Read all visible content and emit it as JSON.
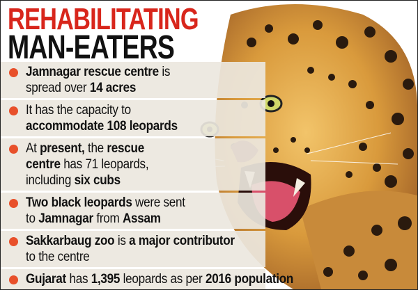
{
  "header": {
    "title": [
      "REHABILITATING",
      "MAN-EATERS"
    ]
  },
  "bullets": [
    {
      "lines": [
        [
          {
            "text": "Jamnagar rescue centre",
            "bold": true
          },
          {
            "text": "is",
            "bold": false
          }
        ],
        [
          {
            "text": "spread over",
            "bold": false
          },
          {
            "text": "14 acres",
            "bold": true
          }
        ]
      ]
    },
    {
      "lines": [
        [
          {
            "text": "It has the capacity to",
            "bold": false
          }
        ],
        [
          {
            "text": "accommodate 108 leopards",
            "bold": true
          }
        ]
      ]
    },
    {
      "lines": [
        [
          {
            "text": "At",
            "bold": false
          },
          {
            "text": "present,",
            "bold": true
          },
          {
            "text": "the",
            "bold": false
          },
          {
            "text": "rescue",
            "bold": true
          }
        ],
        [
          {
            "text": "centre",
            "bold": true
          },
          {
            "text": "has 71 leopards,",
            "bold": false
          }
        ],
        [
          {
            "text": "including",
            "bold": false
          },
          {
            "text": "six cubs",
            "bold": true
          }
        ]
      ]
    },
    {
      "lines": [
        [
          {
            "text": "Two black leopards",
            "bold": true
          },
          {
            "text": "were sent",
            "bold": false
          }
        ],
        [
          {
            "text": "to",
            "bold": false
          },
          {
            "text": "Jamnagar",
            "bold": true
          },
          {
            "text": "from",
            "bold": false
          },
          {
            "text": "Assam",
            "bold": true
          }
        ]
      ]
    },
    {
      "lines": [
        [
          {
            "text": "Sakkarbaug zoo",
            "bold": true
          },
          {
            "text": "is",
            "bold": false
          },
          {
            "text": "a major contributor",
            "bold": true
          }
        ],
        [
          {
            "text": "to the centre",
            "bold": false
          }
        ]
      ]
    },
    {
      "lines": [
        [
          {
            "text": "Gujarat",
            "bold": true
          },
          {
            "text": "has",
            "bold": false
          },
          {
            "text": "1,395",
            "bold": true
          },
          {
            "text": "leopards as per",
            "bold": false
          },
          {
            "text": "2016 population",
            "bold": true
          }
        ]
      ]
    }
  ]
}
